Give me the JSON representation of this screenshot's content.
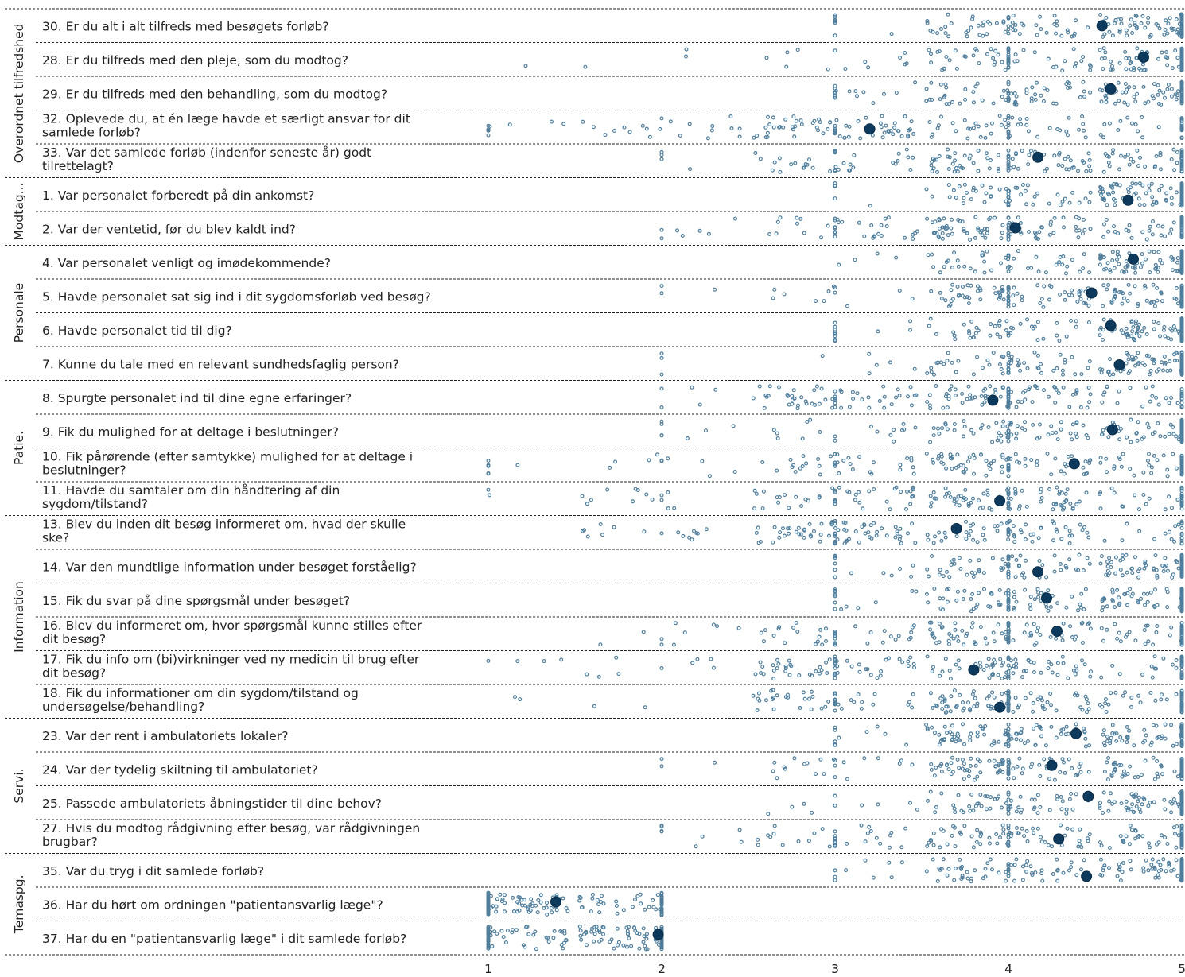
{
  "chart_data": {
    "type": "scatter",
    "title": "",
    "xlabel": "",
    "ylabel": "",
    "xlim": [
      1,
      5
    ],
    "xticks": [
      "1",
      "2",
      "3",
      "4",
      "5"
    ],
    "colors": {
      "points": "#4f7e9c",
      "mean": "#0d3a5c",
      "separator": "#222222"
    },
    "groups": [
      {
        "name": "Overordnet tilfredshed",
        "questions": [
          0,
          1,
          2,
          3,
          4
        ]
      },
      {
        "name": "Modtag...",
        "questions": [
          5,
          6
        ]
      },
      {
        "name": "Personale",
        "questions": [
          7,
          8,
          9,
          10
        ]
      },
      {
        "name": "Patie.",
        "questions": [
          11,
          12,
          13,
          14
        ]
      },
      {
        "name": "Information",
        "questions": [
          15,
          16,
          17,
          18,
          19,
          20
        ]
      },
      {
        "name": "Servi.",
        "questions": [
          21,
          22,
          23,
          24
        ]
      },
      {
        "name": "Temaspg.",
        "questions": [
          25,
          26,
          27
        ]
      }
    ],
    "questions": [
      {
        "lines": [
          "30. Er du alt i alt tilfreds med besøgets forløb?"
        ],
        "mean": 4.54,
        "dist": [
          0,
          0.01,
          0.05,
          0.3,
          0.64
        ],
        "floor": 3,
        "ceil": 5
      },
      {
        "lines": [
          "28. Er du tilfreds med den pleje, som du modtog?"
        ],
        "mean": 4.78,
        "dist": [
          0.01,
          0.02,
          0.05,
          0.28,
          0.64
        ],
        "floor": 1,
        "ceil": 5
      },
      {
        "lines": [
          "29. Er du tilfreds med den behandling, som du modtog?"
        ],
        "mean": 4.59,
        "dist": [
          0,
          0,
          0.06,
          0.3,
          0.64
        ],
        "floor": 3,
        "ceil": 5
      },
      {
        "lines": [
          "32. Oplevede du, at én læge havde et særligt ansvar for dit",
          "samlede forløb?"
        ],
        "mean": 3.2,
        "dist": [
          0.02,
          0.1,
          0.4,
          0.32,
          0.16
        ],
        "floor": 1,
        "ceil": 5
      },
      {
        "lines": [
          "33. Var det samlede forløb (indenfor seneste år) godt",
          "tilrettelagt?"
        ],
        "mean": 4.17,
        "dist": [
          0,
          0.03,
          0.15,
          0.42,
          0.4
        ],
        "floor": 2,
        "ceil": 5
      },
      {
        "lines": [
          "1. Var personalet forberedt på din ankomst?"
        ],
        "mean": 4.69,
        "dist": [
          0,
          0,
          0.03,
          0.28,
          0.69
        ],
        "floor": 3,
        "ceil": 5
      },
      {
        "lines": [
          "2. Var der ventetid, før du blev kaldt ind?"
        ],
        "mean": 4.04,
        "dist": [
          0,
          0.02,
          0.2,
          0.5,
          0.28
        ],
        "floor": 2,
        "ceil": 5
      },
      {
        "lines": [
          "4. Var personalet venligt og imødekommende?"
        ],
        "mean": 4.72,
        "dist": [
          0,
          0,
          0.02,
          0.25,
          0.73
        ],
        "floor": 3,
        "ceil": 5
      },
      {
        "lines": [
          "5. Havde personalet sat sig ind i dit sygdomsforløb ved besøg?"
        ],
        "mean": 4.48,
        "dist": [
          0,
          0.01,
          0.06,
          0.36,
          0.57
        ],
        "floor": 2,
        "ceil": 5
      },
      {
        "lines": [
          "6. Havde personalet tid til dig?"
        ],
        "mean": 4.59,
        "dist": [
          0,
          0,
          0.05,
          0.3,
          0.65
        ],
        "floor": 3,
        "ceil": 5
      },
      {
        "lines": [
          "7. Kunne du tale med en relevant sundhedsfaglig person?"
        ],
        "mean": 4.64,
        "dist": [
          0,
          0.01,
          0.04,
          0.28,
          0.67
        ],
        "floor": 2,
        "ceil": 5
      },
      {
        "lines": [
          "8. Spurgte personalet ind til dine egne erfaringer?"
        ],
        "mean": 3.91,
        "dist": [
          0,
          0.04,
          0.3,
          0.5,
          0.16
        ],
        "floor": 2,
        "ceil": 5
      },
      {
        "lines": [
          "9. Fik du mulighed for at deltage i beslutninger?"
        ],
        "mean": 4.6,
        "dist": [
          0,
          0.02,
          0.1,
          0.4,
          0.48
        ],
        "floor": 2,
        "ceil": 5
      },
      {
        "lines": [
          "10. Fik pårørende (efter samtykke) mulighed for at deltage i",
          "beslutninger?"
        ],
        "mean": 4.38,
        "dist": [
          0.02,
          0.05,
          0.2,
          0.43,
          0.3
        ],
        "floor": 1,
        "ceil": 5
      },
      {
        "lines": [
          "11. Havde du samtaler om din håndtering af din",
          "sygdom/tilstand?"
        ],
        "mean": 3.95,
        "dist": [
          0.01,
          0.05,
          0.28,
          0.46,
          0.2
        ],
        "floor": 1,
        "ceil": 5
      },
      {
        "lines": [
          "13. Blev du inden dit besøg informeret om, hvad der skulle",
          "ske?"
        ],
        "mean": 3.7,
        "dist": [
          0,
          0.06,
          0.35,
          0.42,
          0.17
        ],
        "floor": 1,
        "ceil": 5
      },
      {
        "lines": [
          "14. Var den mundtlige information under besøget forståelig?"
        ],
        "mean": 4.17,
        "dist": [
          0,
          0,
          0.06,
          0.4,
          0.54
        ],
        "floor": 3,
        "ceil": 5
      },
      {
        "lines": [
          "15. Fik du svar på dine spørgsmål under besøget?"
        ],
        "mean": 4.22,
        "dist": [
          0,
          0,
          0.06,
          0.4,
          0.54
        ],
        "floor": 3,
        "ceil": 5
      },
      {
        "lines": [
          "16. Blev du informeret om, hvor spørgsmål kunne stilles efter",
          "dit besøg?"
        ],
        "mean": 4.28,
        "dist": [
          0.01,
          0.04,
          0.2,
          0.43,
          0.32
        ],
        "floor": 1,
        "ceil": 5
      },
      {
        "lines": [
          "17. Fik du info om (bi)virkninger ved ny medicin til brug efter",
          "dit besøg?"
        ],
        "mean": 3.8,
        "dist": [
          0.02,
          0.06,
          0.3,
          0.42,
          0.2
        ],
        "floor": 1,
        "ceil": 5
      },
      {
        "lines": [
          "18. Fik du informationer om din sygdom/tilstand og",
          "undersøgelse/behandling?"
        ],
        "mean": 3.95,
        "dist": [
          0.01,
          0.03,
          0.22,
          0.48,
          0.26
        ],
        "floor": 1,
        "ceil": 5
      },
      {
        "lines": [
          "23. Var der rent i ambulatoriets lokaler?"
        ],
        "mean": 4.39,
        "dist": [
          0,
          0,
          0.05,
          0.4,
          0.55
        ],
        "floor": 3,
        "ceil": 5
      },
      {
        "lines": [
          "24. Var der tydelig skiltning til ambulatoriet?"
        ],
        "mean": 4.25,
        "dist": [
          0,
          0.01,
          0.12,
          0.45,
          0.42
        ],
        "floor": 2,
        "ceil": 5
      },
      {
        "lines": [
          "25. Passede ambulatoriets åbningstider til dine behov?"
        ],
        "mean": 4.46,
        "dist": [
          0.01,
          0,
          0.05,
          0.38,
          0.56
        ],
        "floor": 1,
        "ceil": 5
      },
      {
        "lines": [
          "27. Hvis du modtog rådgivning efter besøg, var rådgivningen",
          "brugbar?"
        ],
        "mean": 4.29,
        "dist": [
          0,
          0.03,
          0.15,
          0.42,
          0.4
        ],
        "floor": 2,
        "ceil": 5
      },
      {
        "lines": [
          "35. Var du tryg i dit samlede forløb?"
        ],
        "mean": 4.45,
        "dist": [
          0,
          0,
          0.06,
          0.4,
          0.54
        ],
        "floor": 3,
        "ceil": 5
      },
      {
        "lines": [
          "36. Har du hørt om ordningen \"patientansvarlig læge\"?"
        ],
        "mean": 1.39,
        "dist": [
          0.6,
          0.4,
          0,
          0,
          0
        ],
        "floor": 1,
        "ceil": 2
      },
      {
        "lines": [
          "37. Har du en \"patientansvarlig læge\" i dit samlede forløb?"
        ],
        "mean": 1.98,
        "dist": [
          0.35,
          0.65,
          0,
          0,
          0
        ],
        "floor": 1,
        "ceil": 2
      }
    ]
  }
}
